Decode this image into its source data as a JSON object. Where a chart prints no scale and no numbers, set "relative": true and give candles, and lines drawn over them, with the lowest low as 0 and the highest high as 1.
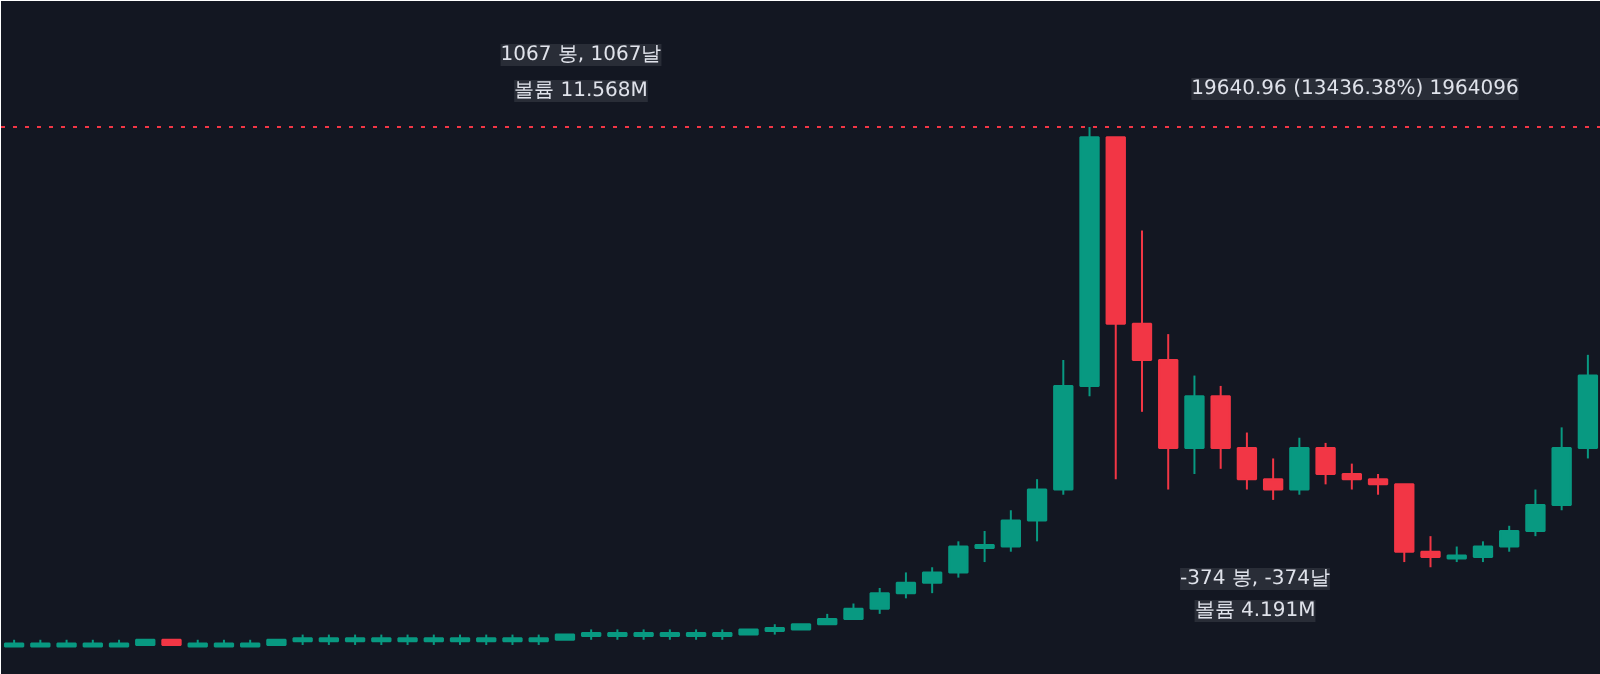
{
  "chart_data": {
    "type": "candlestick",
    "relative": true,
    "categories": [
      null,
      null,
      null,
      null,
      null,
      null,
      null,
      null,
      null,
      null,
      null,
      null,
      null,
      null,
      null,
      null,
      null,
      null,
      null,
      null,
      null,
      null,
      null,
      null,
      null,
      null,
      null,
      null,
      null,
      null,
      null,
      null,
      null,
      null,
      null,
      null,
      null,
      null,
      null,
      null,
      null,
      null,
      null,
      null,
      null,
      null,
      null,
      null,
      null,
      null,
      null,
      null,
      null,
      null,
      null,
      null,
      null,
      null,
      null,
      null,
      null
    ],
    "ohlc": [
      [
        0.0,
        0.01,
        0.0,
        0.0
      ],
      [
        0.0,
        0.01,
        0.0,
        0.0
      ],
      [
        0.0,
        0.01,
        0.0,
        0.0
      ],
      [
        0.0,
        0.01,
        0.0,
        0.0
      ],
      [
        0.0,
        0.01,
        0.0,
        0.0
      ],
      [
        0.0,
        0.01,
        0.0,
        0.01
      ],
      [
        0.01,
        0.01,
        0.0,
        0.0
      ],
      [
        0.0,
        0.01,
        0.0,
        0.0
      ],
      [
        0.0,
        0.01,
        0.0,
        0.0
      ],
      [
        0.0,
        0.01,
        0.0,
        0.0
      ],
      [
        0.0,
        0.01,
        0.0,
        0.01
      ],
      [
        0.01,
        0.02,
        0.0,
        0.01
      ],
      [
        0.01,
        0.02,
        0.0,
        0.01
      ],
      [
        0.01,
        0.02,
        0.0,
        0.01
      ],
      [
        0.01,
        0.02,
        0.0,
        0.01
      ],
      [
        0.01,
        0.02,
        0.0,
        0.01
      ],
      [
        0.01,
        0.02,
        0.0,
        0.01
      ],
      [
        0.01,
        0.02,
        0.0,
        0.01
      ],
      [
        0.01,
        0.02,
        0.0,
        0.01
      ],
      [
        0.01,
        0.02,
        0.0,
        0.01
      ],
      [
        0.01,
        0.02,
        0.0,
        0.01
      ],
      [
        0.01,
        0.02,
        0.01,
        0.02
      ],
      [
        0.02,
        0.03,
        0.01,
        0.02
      ],
      [
        0.02,
        0.03,
        0.01,
        0.02
      ],
      [
        0.02,
        0.03,
        0.01,
        0.02
      ],
      [
        0.02,
        0.03,
        0.01,
        0.02
      ],
      [
        0.02,
        0.03,
        0.01,
        0.02
      ],
      [
        0.02,
        0.03,
        0.01,
        0.02
      ],
      [
        0.02,
        0.03,
        0.02,
        0.03
      ],
      [
        0.03,
        0.04,
        0.02,
        0.03
      ],
      [
        0.03,
        0.04,
        0.03,
        0.04
      ],
      [
        0.04,
        0.06,
        0.04,
        0.05
      ],
      [
        0.05,
        0.08,
        0.05,
        0.07
      ],
      [
        0.07,
        0.11,
        0.06,
        0.1
      ],
      [
        0.1,
        0.14,
        0.09,
        0.12
      ],
      [
        0.12,
        0.15,
        0.1,
        0.14
      ],
      [
        0.14,
        0.2,
        0.13,
        0.19
      ],
      [
        0.19,
        0.22,
        0.16,
        0.19
      ],
      [
        0.19,
        0.26,
        0.18,
        0.24
      ],
      [
        0.24,
        0.32,
        0.2,
        0.3
      ],
      [
        0.3,
        0.55,
        0.29,
        0.5
      ],
      [
        0.5,
        1.0,
        0.48,
        0.98
      ],
      [
        0.98,
        0.98,
        0.32,
        0.62
      ],
      [
        0.62,
        0.8,
        0.45,
        0.55
      ],
      [
        0.55,
        0.6,
        0.3,
        0.38
      ],
      [
        0.38,
        0.52,
        0.33,
        0.48
      ],
      [
        0.48,
        0.5,
        0.34,
        0.38
      ],
      [
        0.38,
        0.41,
        0.3,
        0.32
      ],
      [
        0.32,
        0.36,
        0.28,
        0.3
      ],
      [
        0.3,
        0.4,
        0.29,
        0.38
      ],
      [
        0.38,
        0.39,
        0.31,
        0.33
      ],
      [
        0.33,
        0.35,
        0.3,
        0.32
      ],
      [
        0.32,
        0.33,
        0.29,
        0.31
      ],
      [
        0.31,
        0.31,
        0.16,
        0.18
      ],
      [
        0.18,
        0.21,
        0.15,
        0.17
      ],
      [
        0.17,
        0.19,
        0.16,
        0.17
      ],
      [
        0.17,
        0.2,
        0.16,
        0.19
      ],
      [
        0.19,
        0.23,
        0.18,
        0.22
      ],
      [
        0.22,
        0.3,
        0.21,
        0.27
      ],
      [
        0.27,
        0.42,
        0.26,
        0.38
      ],
      [
        0.38,
        0.56,
        0.36,
        0.52
      ]
    ],
    "colors": [
      "#089981",
      "#089981",
      "#089981",
      "#089981",
      "#089981",
      "#089981",
      "#f23645",
      "#089981",
      "#089981",
      "#089981",
      "#089981",
      "#089981",
      "#089981",
      "#089981",
      "#089981",
      "#089981",
      "#089981",
      "#089981",
      "#089981",
      "#089981",
      "#089981",
      "#089981",
      "#089981",
      "#089981",
      "#089981",
      "#089981",
      "#089981",
      "#089981",
      "#089981",
      "#089981",
      "#089981",
      "#089981",
      "#089981",
      "#089981",
      "#089981",
      "#089981",
      "#089981",
      "#089981",
      "#089981",
      "#089981",
      "#089981",
      "#089981",
      "#f23645",
      "#f23645",
      "#f23645",
      "#089981",
      "#f23645",
      "#f23645",
      "#f23645",
      "#089981",
      "#f23645",
      "#f23645",
      "#f23645",
      "#f23645",
      "#f23645",
      "#089981",
      "#089981",
      "#089981",
      "#089981",
      "#089981",
      "#089981"
    ],
    "ref_lines": [
      {
        "axis": "y",
        "value": 1.0,
        "color": "#f23645",
        "line_style": "dotted"
      }
    ],
    "annotations": [
      "1067 봉, 1067날",
      "볼륨 11.568M",
      "19640.96 (13436.38%) 1964096",
      "-374 봉, -374날",
      "볼륨 4.191M"
    ]
  }
}
